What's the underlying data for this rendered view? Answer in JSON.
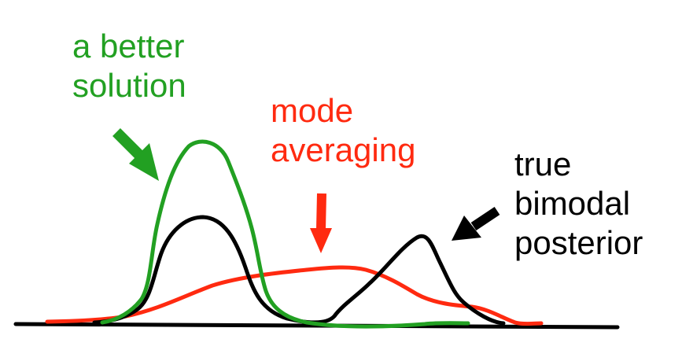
{
  "labels": {
    "better_solution": {
      "line1": "a better",
      "line2": "solution"
    },
    "mode_averaging": {
      "line1": "mode",
      "line2": "averaging"
    },
    "true_posterior": {
      "line1": "true",
      "line2": "bimodal",
      "line3": "posterior"
    }
  },
  "colors": {
    "better_solution": "#22a022",
    "mode_averaging": "#ff2a10",
    "true_posterior": "#000000",
    "axis": "#000000",
    "background": "#ffffff"
  }
}
